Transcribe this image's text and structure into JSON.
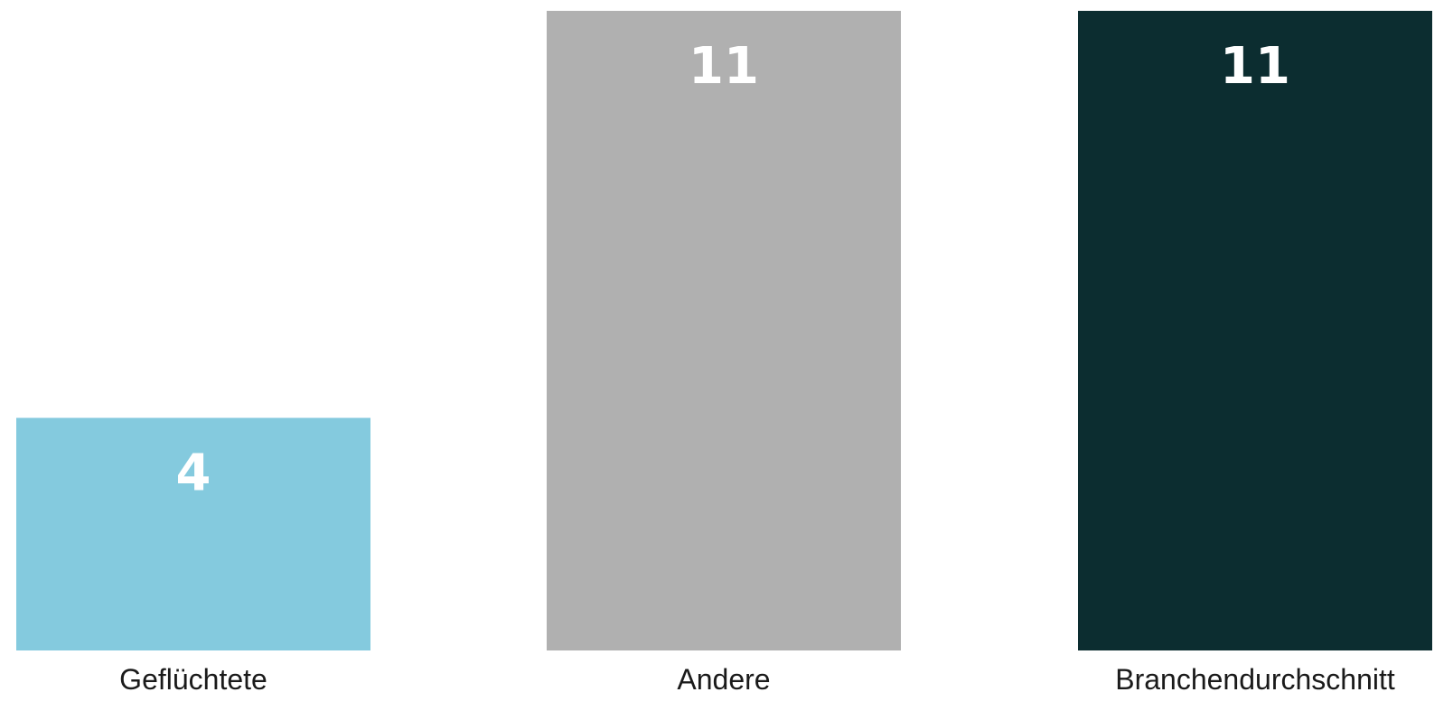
{
  "chart_data": {
    "type": "bar",
    "categories": [
      "Geflüchtete",
      "Andere",
      "Branchendurchschnitt"
    ],
    "values": [
      4,
      11,
      11
    ],
    "colors": [
      "#84CADE",
      "#B0B0B0",
      "#0C2D30"
    ],
    "value_label_color": "#FFFFFF",
    "ylim": [
      0,
      11
    ],
    "grid": false,
    "legend": "none"
  }
}
